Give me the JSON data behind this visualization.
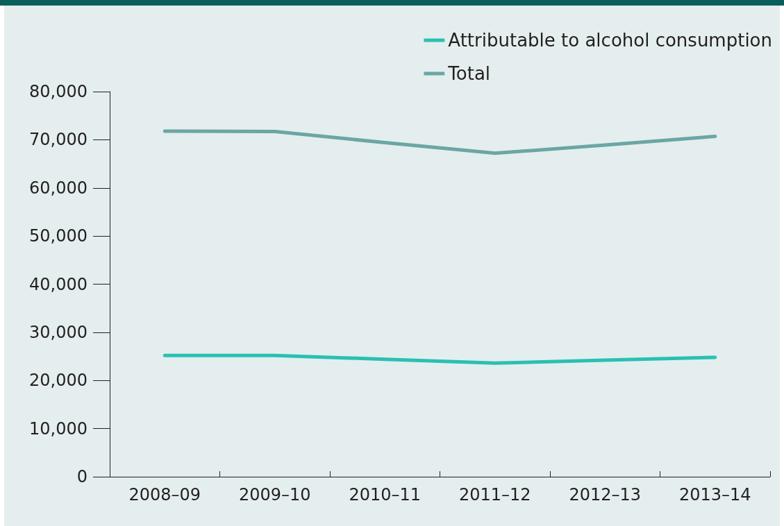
{
  "chart_data": {
    "type": "line",
    "categories": [
      "2008–09",
      "2009–10",
      "2010–11",
      "2011–12",
      "2012–13",
      "2013–14"
    ],
    "series": [
      {
        "name": "Attributable to alcohol consumption",
        "color": "#2bbfb3",
        "values": [
          25200,
          25200,
          24400,
          23600,
          24200,
          24800
        ]
      },
      {
        "name": "Total",
        "color": "#6aa6a4",
        "values": [
          71800,
          71700,
          69400,
          67200,
          68900,
          70700
        ]
      }
    ],
    "ylim": [
      0,
      80000
    ],
    "yticks": [
      0,
      {
        "value": 10000,
        "label": "10,000"
      },
      {
        "value": 20000,
        "label": "20,000"
      },
      {
        "value": 30000,
        "label": "30,000"
      },
      {
        "value": 40000,
        "label": "40,000"
      },
      {
        "value": 50000,
        "label": "50,000"
      },
      {
        "value": 60000,
        "label": "60,000"
      },
      {
        "value": 70000,
        "label": "70,000"
      },
      {
        "value": 80000,
        "label": "80,000"
      }
    ],
    "grid": false,
    "legend": "top right",
    "marker": "none",
    "line_style": "solid"
  }
}
